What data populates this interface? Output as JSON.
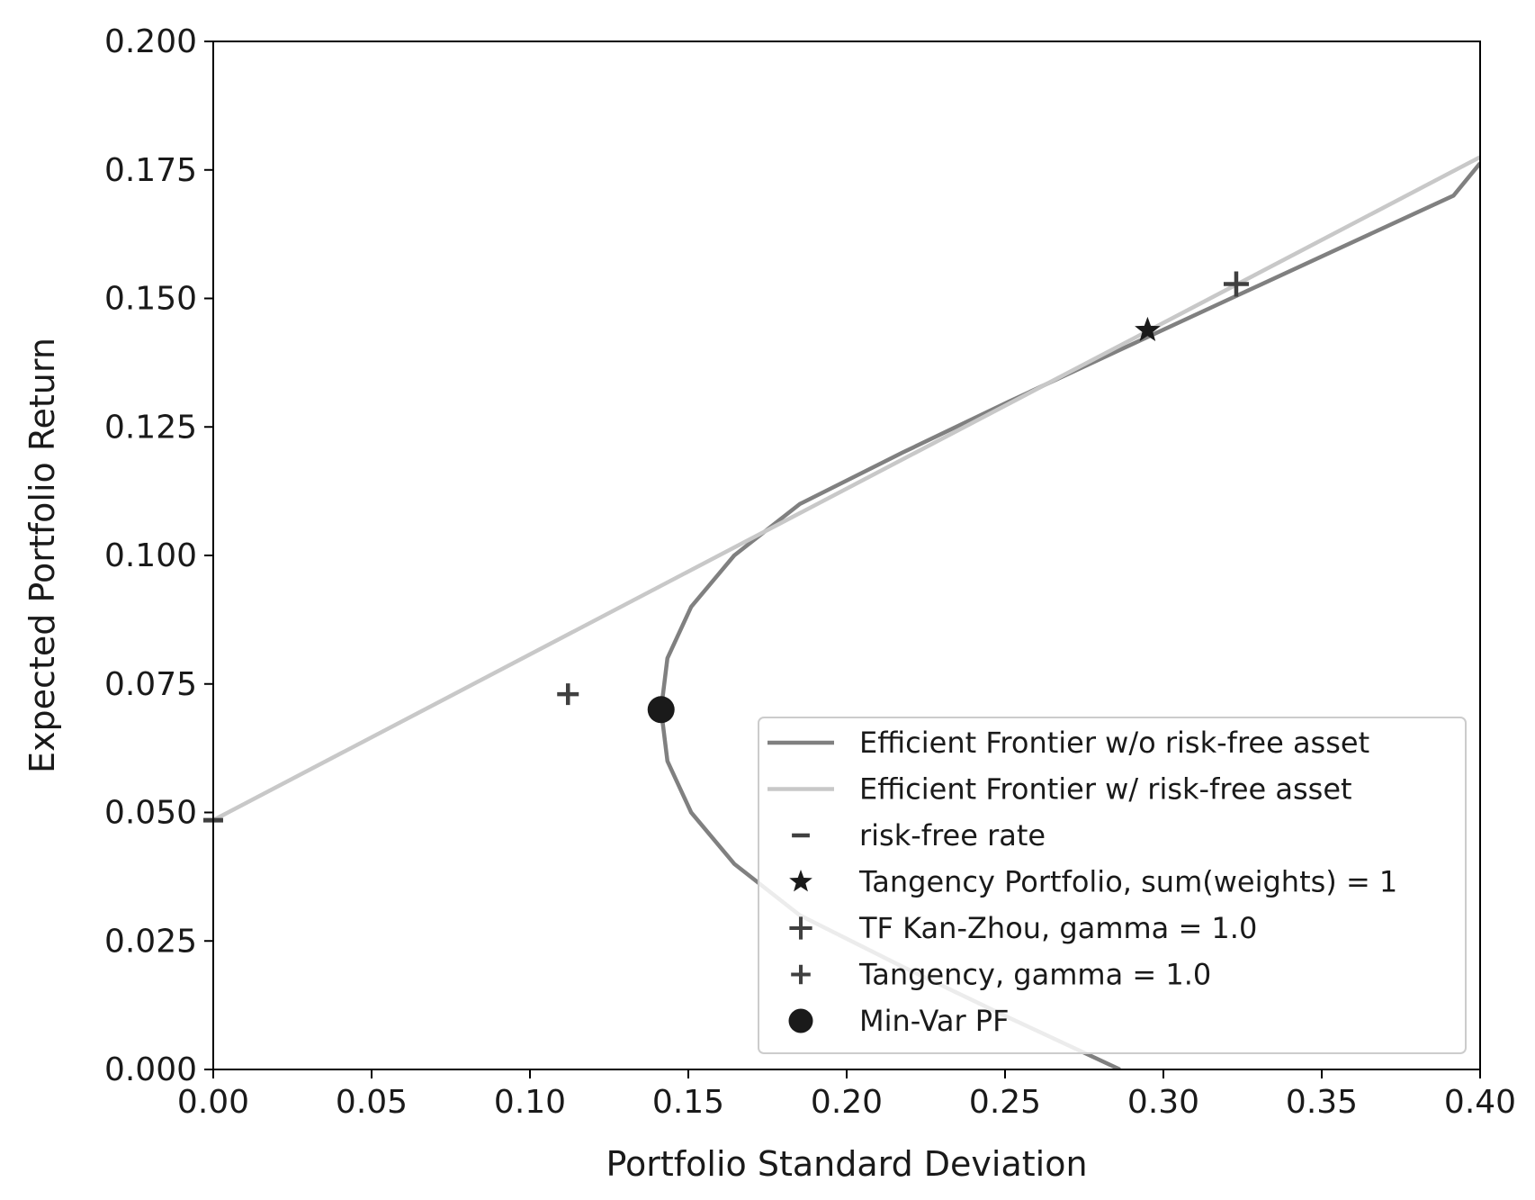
{
  "chart_data": {
    "type": "line",
    "xlabel": "Portfolio Standard Deviation",
    "ylabel": "Expected Portfolio Return",
    "xlim": [
      0.0,
      0.4
    ],
    "ylim": [
      0.0,
      0.2
    ],
    "x_ticks": [
      "0.00",
      "0.05",
      "0.10",
      "0.15",
      "0.20",
      "0.25",
      "0.30",
      "0.35",
      "0.40"
    ],
    "y_ticks": [
      "0.000",
      "0.025",
      "0.050",
      "0.075",
      "0.100",
      "0.125",
      "0.150",
      "0.175",
      "0.200"
    ],
    "grid": false,
    "legend_position": "lower-right",
    "series": [
      {
        "name": "Efficient Frontier w/o risk-free asset",
        "kind": "line",
        "color": "#808080",
        "points": [
          [
            0.2863,
            0.0
          ],
          [
            0.2515,
            0.01
          ],
          [
            0.2176,
            0.02
          ],
          [
            0.1852,
            0.03
          ],
          [
            0.1645,
            0.04
          ],
          [
            0.1509,
            0.05
          ],
          [
            0.1434,
            0.06
          ],
          [
            0.1414,
            0.07
          ],
          [
            0.1434,
            0.08
          ],
          [
            0.1509,
            0.09
          ],
          [
            0.1645,
            0.1
          ],
          [
            0.1852,
            0.11
          ],
          [
            0.2176,
            0.12
          ],
          [
            0.2515,
            0.13
          ],
          [
            0.2863,
            0.14
          ],
          [
            0.3213,
            0.15
          ],
          [
            0.3564,
            0.16
          ],
          [
            0.3916,
            0.17
          ],
          [
            0.4,
            0.1763
          ]
        ]
      },
      {
        "name": "Efficient Frontier w/ risk-free asset",
        "kind": "line",
        "color": "#c8c8c8",
        "points": [
          [
            0.0,
            0.0485
          ],
          [
            0.4,
            0.1775
          ]
        ]
      },
      {
        "name": "risk-free rate",
        "kind": "marker",
        "marker": "hline",
        "color": "#404040",
        "points": [
          [
            0.0,
            0.0485
          ]
        ]
      },
      {
        "name": "Tangency Portfolio, sum(weights) = 1",
        "kind": "marker",
        "marker": "star",
        "color": "#1a1a1a",
        "points": [
          [
            0.295,
            0.1438
          ]
        ]
      },
      {
        "name": "TF Kan-Zhou, gamma = 1.0",
        "kind": "marker",
        "marker": "plus-large",
        "color": "#404040",
        "points": [
          [
            0.323,
            0.1528
          ]
        ]
      },
      {
        "name": "Tangency, gamma = 1.0",
        "kind": "marker",
        "marker": "plus",
        "color": "#404040",
        "points": [
          [
            0.112,
            0.073
          ]
        ]
      },
      {
        "name": "Min-Var PF",
        "kind": "marker",
        "marker": "circle",
        "color": "#1a1a1a",
        "points": [
          [
            0.1414,
            0.07
          ]
        ]
      }
    ]
  }
}
